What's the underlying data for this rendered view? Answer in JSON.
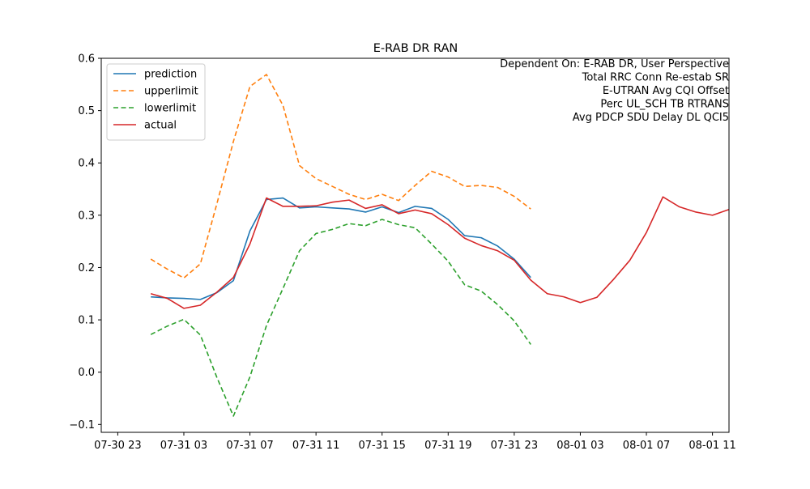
{
  "chart_data": {
    "type": "line",
    "title": "E-RAB DR RAN",
    "xlabel": "",
    "ylabel": "",
    "xlim": [
      "2024-07-30T22:00",
      "2024-08-01T12:00"
    ],
    "ylim": [
      -0.115,
      0.6
    ],
    "x_ticks": [
      {
        "t": "2024-07-30T23:00",
        "label": "07-30 23"
      },
      {
        "t": "2024-07-31T03:00",
        "label": "07-31 03"
      },
      {
        "t": "2024-07-31T07:00",
        "label": "07-31 07"
      },
      {
        "t": "2024-07-31T11:00",
        "label": "07-31 11"
      },
      {
        "t": "2024-07-31T15:00",
        "label": "07-31 15"
      },
      {
        "t": "2024-07-31T19:00",
        "label": "07-31 19"
      },
      {
        "t": "2024-07-31T23:00",
        "label": "07-31 23"
      },
      {
        "t": "2024-08-01T03:00",
        "label": "08-01 03"
      },
      {
        "t": "2024-08-01T07:00",
        "label": "08-01 07"
      },
      {
        "t": "2024-08-01T11:00",
        "label": "08-01 11"
      }
    ],
    "y_ticks": [
      {
        "v": -0.1,
        "label": "−0.1"
      },
      {
        "v": 0.0,
        "label": "0.0"
      },
      {
        "v": 0.1,
        "label": "0.1"
      },
      {
        "v": 0.2,
        "label": "0.2"
      },
      {
        "v": 0.3,
        "label": "0.3"
      },
      {
        "v": 0.4,
        "label": "0.4"
      },
      {
        "v": 0.5,
        "label": "0.5"
      },
      {
        "v": 0.6,
        "label": "0.6"
      }
    ],
    "grid": false,
    "legend_position": "upper-left",
    "annotation_lines": [
      "Dependent On: E-RAB DR, User Perspective",
      "Total RRC Conn Re-estab SR",
      "E-UTRAN Avg CQI Offset",
      "Perc UL_SCH TB RTRANS",
      "Avg PDCP SDU Delay DL QCI5"
    ],
    "series": [
      {
        "name": "prediction",
        "color": "#1f77b4",
        "dash": "solid",
        "start": "2024-07-31T01:00",
        "step_hours": 1,
        "values": [
          0.144,
          0.142,
          0.141,
          0.139,
          0.152,
          0.175,
          0.27,
          0.33,
          0.333,
          0.314,
          0.316,
          0.314,
          0.312,
          0.306,
          0.316,
          0.305,
          0.317,
          0.313,
          0.292,
          0.261,
          0.257,
          0.241,
          0.216,
          0.181
        ]
      },
      {
        "name": "upperlimit",
        "color": "#ff7f0e",
        "dash": "dashed",
        "start": "2024-07-31T01:00",
        "step_hours": 1,
        "values": [
          0.216,
          0.197,
          0.18,
          0.207,
          0.322,
          0.441,
          0.546,
          0.569,
          0.51,
          0.395,
          0.37,
          0.355,
          0.34,
          0.33,
          0.34,
          0.328,
          0.357,
          0.384,
          0.373,
          0.355,
          0.357,
          0.353,
          0.336,
          0.312
        ]
      },
      {
        "name": "lowerlimit",
        "color": "#2ca02c",
        "dash": "dashed",
        "start": "2024-07-31T01:00",
        "step_hours": 1,
        "values": [
          0.072,
          0.088,
          0.101,
          0.071,
          -0.01,
          -0.084,
          -0.009,
          0.089,
          0.16,
          0.232,
          0.265,
          0.273,
          0.284,
          0.28,
          0.292,
          0.282,
          0.276,
          0.245,
          0.212,
          0.167,
          0.155,
          0.129,
          0.098,
          0.053
        ]
      },
      {
        "name": "actual",
        "color": "#d62728",
        "dash": "solid",
        "start": "2024-07-31T01:00",
        "step_hours": 1,
        "values": [
          0.15,
          0.141,
          0.122,
          0.128,
          0.153,
          0.181,
          0.245,
          0.333,
          0.317,
          0.317,
          0.318,
          0.325,
          0.329,
          0.313,
          0.32,
          0.303,
          0.31,
          0.303,
          0.282,
          0.256,
          0.242,
          0.232,
          0.214,
          0.176,
          0.15,
          0.144,
          0.133,
          0.143,
          0.177,
          0.214,
          0.267,
          0.335,
          0.316,
          0.306,
          0.3,
          0.311
        ]
      }
    ]
  }
}
